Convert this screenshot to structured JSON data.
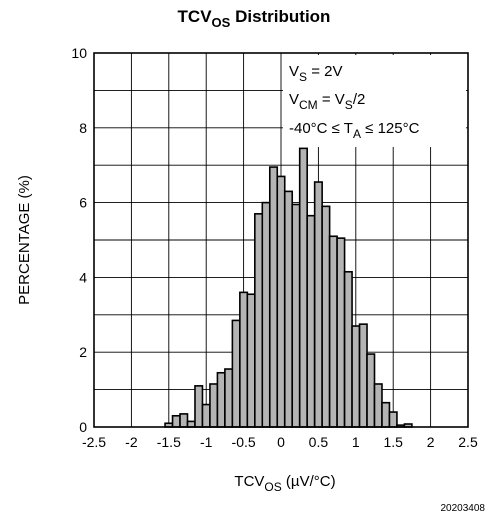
{
  "chart_data": {
    "type": "bar",
    "title_main": "TCV",
    "title_sub": "OS",
    "title_rest": " Distribution",
    "xlabel_main": "TCV",
    "xlabel_sub": "OS",
    "xlabel_rest": " (µV/°C)",
    "ylabel": "PERCENTAGE (%)",
    "xlim": [
      -2.5,
      2.5
    ],
    "ylim": [
      0,
      10
    ],
    "xticks": [
      "-2.5",
      "-2",
      "-1.5",
      "-1",
      "-0.5",
      "0",
      "0.5",
      "1",
      "1.5",
      "2",
      "2.5"
    ],
    "yticks": [
      "0",
      "2",
      "4",
      "6",
      "8",
      "10"
    ],
    "grid": true,
    "bar_color": "#b4b4b4",
    "annotations": [
      {
        "parts": [
          {
            "t": "V"
          },
          {
            "t": "S",
            "sub": true
          },
          {
            "t": " = 2V"
          }
        ]
      },
      {
        "parts": [
          {
            "t": "V"
          },
          {
            "t": "CM",
            "sub": true
          },
          {
            "t": " = V"
          },
          {
            "t": "S",
            "sub": true
          },
          {
            "t": "/2"
          }
        ]
      },
      {
        "parts": [
          {
            "t": "-40°C ≤  T"
          },
          {
            "t": "A",
            "sub": true
          },
          {
            "t": " ≤ 125°C"
          }
        ]
      }
    ],
    "bin_width": 0.1,
    "bars": [
      {
        "x": -1.5,
        "y": 0.1
      },
      {
        "x": -1.4,
        "y": 0.3
      },
      {
        "x": -1.3,
        "y": 0.35
      },
      {
        "x": -1.2,
        "y": 0.15
      },
      {
        "x": -1.1,
        "y": 1.1
      },
      {
        "x": -1.0,
        "y": 0.6
      },
      {
        "x": -0.9,
        "y": 1.15
      },
      {
        "x": -0.8,
        "y": 1.45
      },
      {
        "x": -0.7,
        "y": 1.55
      },
      {
        "x": -0.6,
        "y": 2.85
      },
      {
        "x": -0.5,
        "y": 3.6
      },
      {
        "x": -0.4,
        "y": 3.55
      },
      {
        "x": -0.3,
        "y": 5.7
      },
      {
        "x": -0.2,
        "y": 6.0
      },
      {
        "x": -0.1,
        "y": 6.95
      },
      {
        "x": 0.0,
        "y": 6.7
      },
      {
        "x": 0.1,
        "y": 6.3
      },
      {
        "x": 0.2,
        "y": 5.95
      },
      {
        "x": 0.3,
        "y": 7.45
      },
      {
        "x": 0.4,
        "y": 5.65
      },
      {
        "x": 0.5,
        "y": 6.55
      },
      {
        "x": 0.6,
        "y": 5.9
      },
      {
        "x": 0.7,
        "y": 5.1
      },
      {
        "x": 0.8,
        "y": 5.05
      },
      {
        "x": 0.9,
        "y": 4.15
      },
      {
        "x": 1.0,
        "y": 2.7
      },
      {
        "x": 1.1,
        "y": 2.75
      },
      {
        "x": 1.2,
        "y": 1.95
      },
      {
        "x": 1.3,
        "y": 1.15
      },
      {
        "x": 1.4,
        "y": 0.65
      },
      {
        "x": 1.5,
        "y": 0.4
      },
      {
        "x": 1.6,
        "y": 0.05
      },
      {
        "x": 1.7,
        "y": 0.08
      }
    ]
  },
  "figure_id": "20203408"
}
